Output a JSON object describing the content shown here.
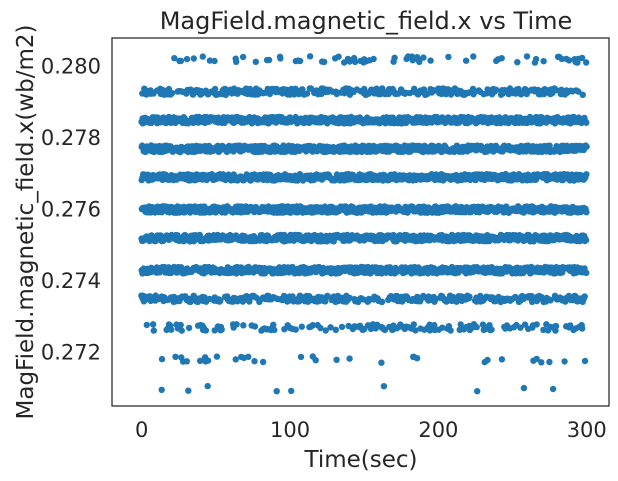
{
  "chart_data": {
    "type": "scatter",
    "title": "MagField.magnetic_field.x vs Time",
    "xlabel": "Time(sec)",
    "ylabel": "MagField.magnetic_field.x(wb/m2)",
    "xlim": [
      -20,
      315
    ],
    "ylim": [
      0.2705,
      0.2808
    ],
    "xticks": [
      0,
      100,
      200,
      300
    ],
    "yticks": [
      0.272,
      0.274,
      0.276,
      0.278,
      0.28
    ],
    "ytick_labels": [
      "0.272",
      "0.274",
      "0.276",
      "0.278",
      "0.280"
    ],
    "grid": false,
    "legend": "none",
    "marker_color": "#1f77b4",
    "x_range": [
      0,
      300
    ],
    "levels": [
      {
        "y": 0.2802,
        "density": 0.1
      },
      {
        "y": 0.2793,
        "density": 0.5
      },
      {
        "y": 0.2785,
        "density": 1.0
      },
      {
        "y": 0.2777,
        "density": 1.0
      },
      {
        "y": 0.2769,
        "density": 1.0
      },
      {
        "y": 0.276,
        "density": 1.0
      },
      {
        "y": 0.2752,
        "density": 1.0
      },
      {
        "y": 0.2743,
        "density": 0.9
      },
      {
        "y": 0.2735,
        "density": 0.5
      },
      {
        "y": 0.2727,
        "density": 0.2
      },
      {
        "y": 0.2718,
        "density": 0.05
      },
      {
        "y": 0.271,
        "density": 0.02
      }
    ]
  }
}
